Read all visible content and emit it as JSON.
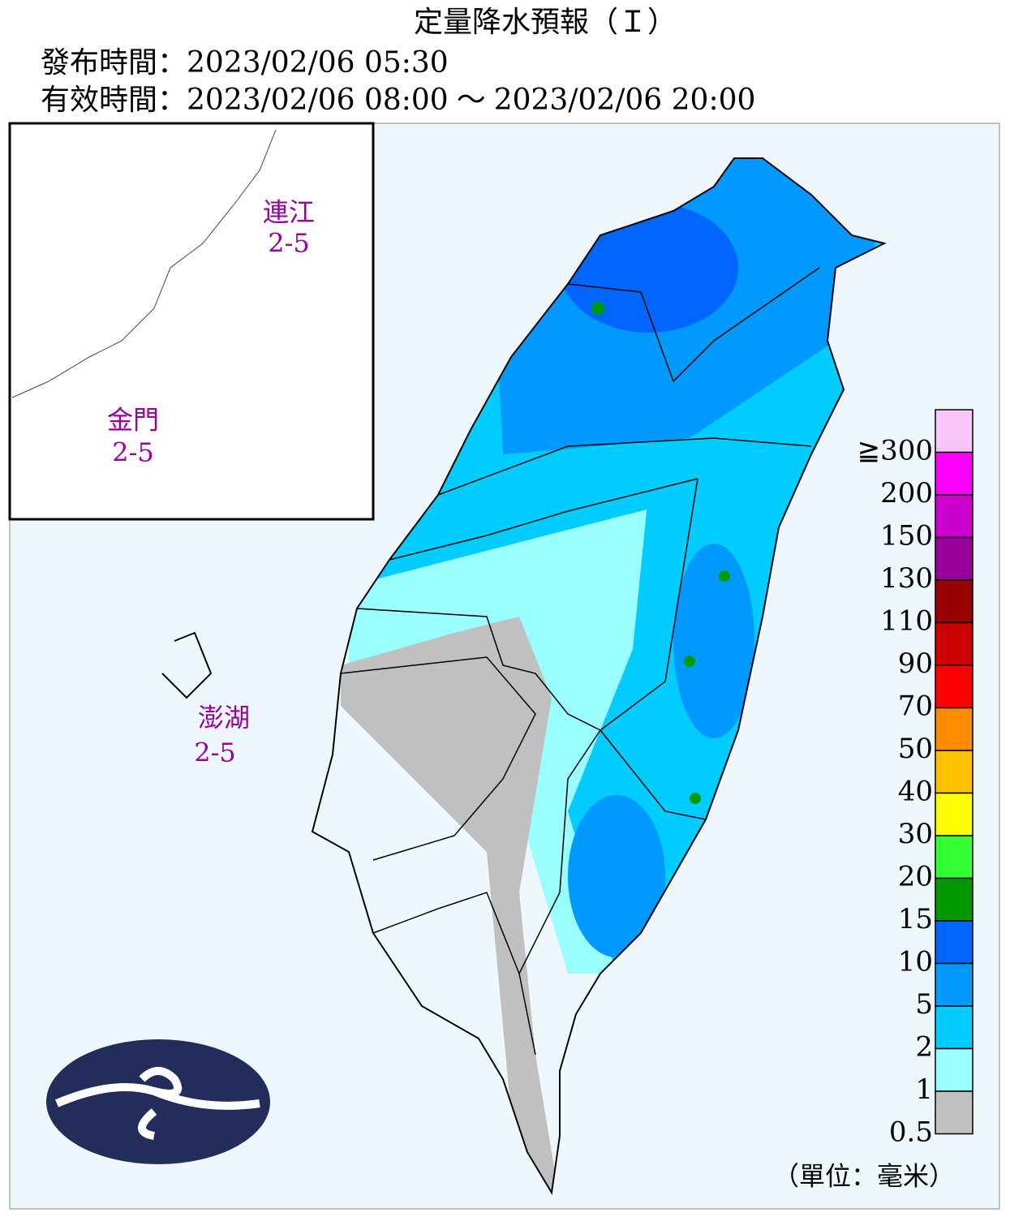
{
  "header": {
    "title": "定量降水預報（Ｉ）",
    "issued_label": "發布時間：",
    "issued": "2023/02/06 05:30",
    "valid_label": "有效時間：",
    "valid_from": "2023/02/06 08:00",
    "valid_sep": "～",
    "valid_to": "2023/02/06 20:00"
  },
  "regions": [
    {
      "name": "連江",
      "range": "2-5"
    },
    {
      "name": "金門",
      "range": "2-5"
    },
    {
      "name": "澎湖",
      "range": "2-5"
    }
  ],
  "legend": {
    "unit": "（單位：毫米）",
    "items": [
      {
        "label": "≧300",
        "color": "#f9c6f9"
      },
      {
        "label": "200",
        "color": "#ff00ff"
      },
      {
        "label": "150",
        "color": "#cc00cc"
      },
      {
        "label": "130",
        "color": "#990099"
      },
      {
        "label": "110",
        "color": "#990000"
      },
      {
        "label": "90",
        "color": "#cc0000"
      },
      {
        "label": "70",
        "color": "#ff0000"
      },
      {
        "label": "50",
        "color": "#ff8c00"
      },
      {
        "label": "40",
        "color": "#ffc000"
      },
      {
        "label": "30",
        "color": "#ffff00"
      },
      {
        "label": "20",
        "color": "#33ff33"
      },
      {
        "label": "15",
        "color": "#009900"
      },
      {
        "label": "10",
        "color": "#0066ff"
      },
      {
        "label": "5",
        "color": "#0099ff"
      },
      {
        "label": "2",
        "color": "#00ccff"
      },
      {
        "label": "1",
        "color": "#99ffff"
      },
      {
        "label": "0.5",
        "color": "#c0c0c0"
      }
    ]
  }
}
